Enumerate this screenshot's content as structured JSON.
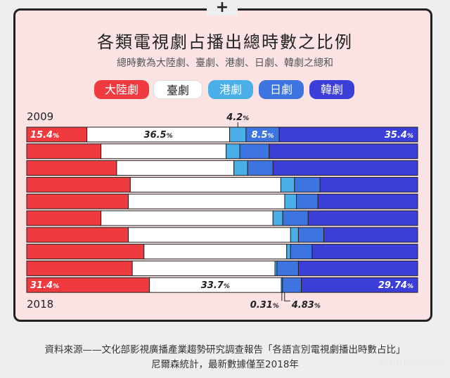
{
  "header": {
    "title": "各類電視劇占播出總時數之比例",
    "subtitle": "總時數為大陸劇、臺劇、港劇、日劇、韓劇之總和"
  },
  "colors": {
    "china": "#ef3b3f",
    "taiwan": "#ffffff",
    "hongkong": "#4aaee8",
    "japan": "#3d74e0",
    "korea": "#3b3fd8"
  },
  "chart_data": {
    "type": "bar",
    "orientation": "horizontal-stacked-100",
    "series": [
      {
        "name": "大陸劇",
        "color": "#ef3b3f",
        "values": [
          15.4,
          19.0,
          23.0,
          26.5,
          26.0,
          19.0,
          26.0,
          30.0,
          27.0,
          31.4
        ]
      },
      {
        "name": "臺劇",
        "color": "#ffffff",
        "values": [
          36.5,
          32.0,
          30.0,
          38.5,
          40.0,
          44.0,
          41.5,
          36.5,
          36.5,
          33.7
        ]
      },
      {
        "name": "港劇",
        "color": "#4aaee8",
        "values": [
          4.2,
          3.5,
          3.5,
          3.5,
          3.0,
          2.5,
          2.0,
          1.0,
          0.5,
          0.31
        ]
      },
      {
        "name": "日劇",
        "color": "#3d74e0",
        "values": [
          8.5,
          7.5,
          6.5,
          6.5,
          5.5,
          6.5,
          6.5,
          5.5,
          5.5,
          4.83
        ]
      },
      {
        "name": "韓劇",
        "color": "#3b3fd8",
        "values": [
          35.4,
          38.0,
          37.0,
          25.0,
          25.5,
          28.0,
          24.0,
          27.0,
          30.5,
          29.74
        ]
      }
    ],
    "year_start": "2009",
    "year_end": "2018",
    "labels_top": {
      "china": "15.4",
      "taiwan": "36.5",
      "hongkong": "4.2",
      "japan": "8.5",
      "korea": "35.4"
    },
    "labels_bottom": {
      "china": "31.4",
      "taiwan": "33.7",
      "hongkong": "0.31",
      "japan": "4.83",
      "korea": "29.74"
    },
    "unit": "%",
    "xlim": [
      0,
      100
    ]
  },
  "source": {
    "line1": "資料來源——文化部影視廣播產業趨勢研究調查報告「各語言別電視劇播出時數占比」",
    "line2": "尼爾森統計，最新數據僅至2018年"
  },
  "watermark": "风闻社区@宁雨山"
}
